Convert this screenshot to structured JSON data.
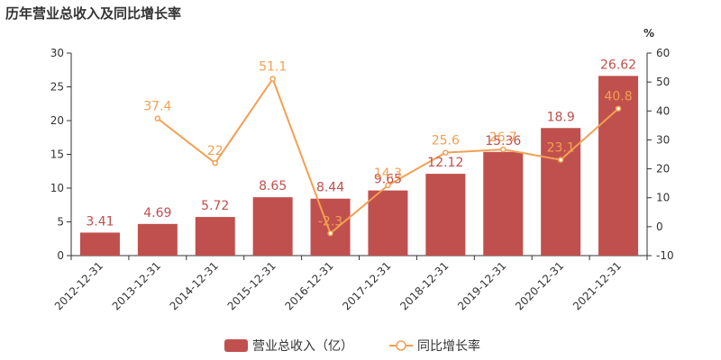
{
  "chart_data": {
    "type": "bar",
    "title": "历年营业总收入及同比增长率",
    "categories": [
      "2012-12-31",
      "2013-12-31",
      "2014-12-31",
      "2015-12-31",
      "2016-12-31",
      "2017-12-31",
      "2018-12-31",
      "2019-12-31",
      "2020-12-31",
      "2021-12-31"
    ],
    "series": [
      {
        "name": "营业总收入（亿）",
        "type": "bar",
        "axis": "left",
        "color": "#c0504d",
        "values": [
          3.41,
          4.69,
          5.72,
          8.65,
          8.44,
          9.65,
          12.12,
          15.36,
          18.9,
          26.62
        ],
        "labels": [
          "3.41",
          "4.69",
          "5.72",
          "8.65",
          "8.44",
          "9.65",
          "12.12",
          "15.36",
          "18.9",
          "26.62"
        ]
      },
      {
        "name": "同比增长率",
        "type": "line",
        "axis": "right",
        "color": "#f2a052",
        "values": [
          null,
          37.4,
          22,
          51.1,
          -2.3,
          14.3,
          25.6,
          26.7,
          23.1,
          40.8
        ],
        "labels": [
          "",
          "37.4",
          "22",
          "51.1",
          "-2.3",
          "14.3",
          "25.6",
          "26.7",
          "23.1",
          "40.8"
        ]
      }
    ],
    "y_left": {
      "min": 0,
      "max": 30,
      "ticks": [
        0,
        5,
        10,
        15,
        20,
        25,
        30
      ]
    },
    "y_right": {
      "min": -10,
      "max": 60,
      "unit": "%",
      "ticks": [
        -10,
        0,
        10,
        20,
        30,
        40,
        50,
        60
      ]
    },
    "grid": false,
    "legend": "bottom-center"
  }
}
